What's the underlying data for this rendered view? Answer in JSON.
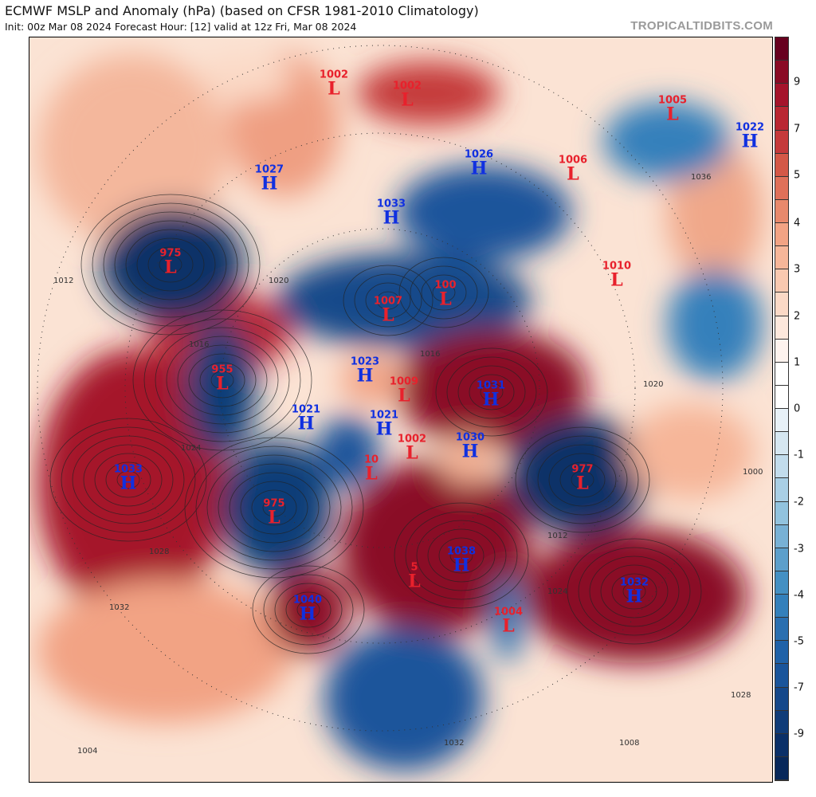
{
  "header": {
    "title": "ECMWF MSLP and Anomaly (hPa) (based on CFSR 1981-2010 Climatology)",
    "subtitle": "Init: 00z Mar 08 2024   Forecast Hour: [12]   valid at 12z Fri, Mar 08 2024",
    "watermark": "TROPICALTIDBITS.COM"
  },
  "colors": {
    "low": "#e8212c",
    "high": "#1030e0"
  },
  "colorbar": {
    "labels": [
      "9",
      "7",
      "5",
      "4",
      "3",
      "2",
      "1",
      "0",
      "-1",
      "-2",
      "-3",
      "-4",
      "-5",
      "-7",
      "-9"
    ],
    "bands": [
      "#67001f",
      "#8a0b25",
      "#a5142c",
      "#b92733",
      "#c53a3b",
      "#d45847",
      "#df7059",
      "#e8896c",
      "#f2a384",
      "#f6b699",
      "#f9c9b0",
      "#fbd9c6",
      "#fde8dc",
      "#fef3ee",
      "#ffffff",
      "#ffffff",
      "#e8f1f7",
      "#d6e7f1",
      "#c2dcec",
      "#a9cfe5",
      "#92c3de",
      "#78b1d5",
      "#5c9fcb",
      "#4490c3",
      "#3480bb",
      "#2a6fb0",
      "#2062a8",
      "#1a559b",
      "#15488a",
      "#103c78",
      "#0b3068",
      "#08285a"
    ]
  },
  "pressure_centers": [
    {
      "type": "L",
      "value": "1002"
    },
    {
      "type": "L",
      "value": "1002"
    },
    {
      "type": "L",
      "value": "1005"
    },
    {
      "type": "L",
      "value": "1006"
    },
    {
      "type": "L",
      "value": "975"
    },
    {
      "type": "L",
      "value": "1010"
    },
    {
      "type": "L",
      "value": "1007"
    },
    {
      "type": "L",
      "value": "100"
    },
    {
      "type": "L",
      "value": "955"
    },
    {
      "type": "L",
      "value": "1009"
    },
    {
      "type": "L",
      "value": "1002"
    },
    {
      "type": "L",
      "value": "10"
    },
    {
      "type": "L",
      "value": "975"
    },
    {
      "type": "L",
      "value": "977"
    },
    {
      "type": "L",
      "value": "5"
    },
    {
      "type": "L",
      "value": "1004"
    },
    {
      "type": "H",
      "value": "1027"
    },
    {
      "type": "H",
      "value": "1026"
    },
    {
      "type": "H",
      "value": "1033"
    },
    {
      "type": "H",
      "value": "1023"
    },
    {
      "type": "H",
      "value": "1031"
    },
    {
      "type": "H",
      "value": "1021"
    },
    {
      "type": "H",
      "value": "1021"
    },
    {
      "type": "H",
      "value": "1030"
    },
    {
      "type": "H",
      "value": "1033"
    },
    {
      "type": "H",
      "value": "1038"
    },
    {
      "type": "H",
      "value": "1040"
    },
    {
      "type": "H",
      "value": "1032"
    },
    {
      "type": "H",
      "value": "1022"
    }
  ],
  "isobar_labels": [
    "1012",
    "1016",
    "1020",
    "1024",
    "1028",
    "1032",
    "1008",
    "1004",
    "1000",
    "1036"
  ]
}
